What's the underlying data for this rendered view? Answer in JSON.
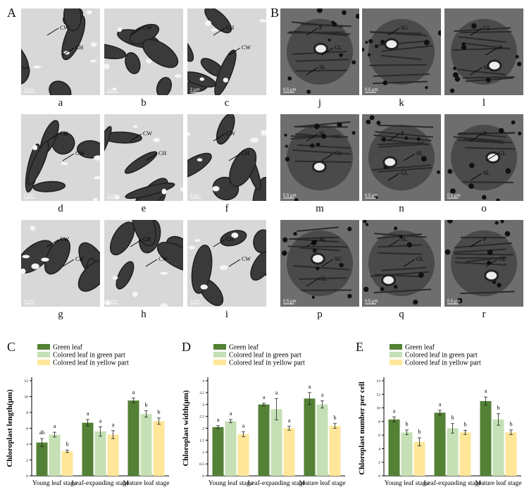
{
  "panels": {
    "a_title": "A",
    "b_title": "B",
    "c_title": "C",
    "d_title": "D",
    "e_title": "E"
  },
  "colors": {
    "green_leaf": "#538135",
    "colored_green_part": "#c5e0b4",
    "colored_yellow_part": "#ffe699"
  },
  "micrographs": [
    {
      "id": "a",
      "label": "a",
      "annotations": [
        "CW",
        "CH"
      ],
      "scale": "2 μm"
    },
    {
      "id": "b",
      "label": "b",
      "annotations": [
        "CW"
      ],
      "scale": "2 μm"
    },
    {
      "id": "c",
      "label": "c",
      "annotations": [
        "CH",
        "CW"
      ],
      "scale": "2 μm"
    },
    {
      "id": "d",
      "label": "d",
      "annotations": [
        "CH",
        "CW"
      ],
      "scale": "2 μm"
    },
    {
      "id": "e",
      "label": "e",
      "annotations": [
        "CW",
        "CH"
      ],
      "scale": "2 μm"
    },
    {
      "id": "f",
      "label": "f",
      "annotations": [
        "CW",
        "CH"
      ],
      "scale": "2 μm"
    },
    {
      "id": "g",
      "label": "g",
      "annotations": [
        "CW",
        "CH"
      ],
      "scale": "2 μm"
    },
    {
      "id": "h",
      "label": "h",
      "annotations": [
        "CH",
        "CW"
      ],
      "scale": "2 μm"
    },
    {
      "id": "i",
      "label": "i",
      "annotations": [
        "CH",
        "CW"
      ],
      "scale": "2 μm"
    },
    {
      "id": "j",
      "label": "j",
      "annotations": [
        "P",
        "GL",
        "SL"
      ],
      "scale": "0.5 μm"
    },
    {
      "id": "k",
      "label": "k",
      "annotations": [
        "SG"
      ],
      "scale": "0.5 μm"
    },
    {
      "id": "l",
      "label": "l",
      "annotations": [
        "GL",
        "P",
        "SL"
      ],
      "scale": ""
    },
    {
      "id": "m",
      "label": "m",
      "annotations": [
        "SL",
        "GL"
      ],
      "scale": "0.5 μm"
    },
    {
      "id": "n",
      "label": "n",
      "annotations": [
        "P",
        "SL",
        "GL"
      ],
      "scale": "0.5 μm"
    },
    {
      "id": "o",
      "label": "o",
      "annotations": [
        "P",
        "GL",
        "SL"
      ],
      "scale": "0.5 μm"
    },
    {
      "id": "p",
      "label": "p",
      "annotations": [
        "SL",
        "SG",
        "GL"
      ],
      "scale": "0.5 μm"
    },
    {
      "id": "q",
      "label": "q",
      "annotations": [
        "SL",
        "GL"
      ],
      "scale": "0.5 μm"
    },
    {
      "id": "r",
      "label": "r",
      "annotations": [
        "P",
        "GL"
      ],
      "scale": "0.5 μm"
    }
  ],
  "legend": [
    "Green leaf",
    "Colored leaf in green part",
    "Colored leaf in yellow part"
  ],
  "chart_data": [
    {
      "type": "bar",
      "ylabel": "Chloroplast length(μm)",
      "xlabel": "",
      "ylim": [
        0,
        12
      ],
      "yticks": [
        0,
        2,
        4,
        6,
        8,
        10,
        12
      ],
      "categories": [
        "Young leaf stage",
        "Leaf-expanding stage",
        "Mature leaf stage"
      ],
      "series": [
        {
          "name": "Green leaf",
          "values": [
            4.2,
            6.7,
            9.5
          ],
          "errors": [
            0.5,
            0.4,
            0.3
          ],
          "letters": [
            "ab",
            "a",
            "a"
          ]
        },
        {
          "name": "Colored leaf in green part",
          "values": [
            5.2,
            5.6,
            7.8
          ],
          "errors": [
            0.3,
            0.6,
            0.4
          ],
          "letters": [
            "a",
            "a",
            "b"
          ]
        },
        {
          "name": "Colored leaf in yellow part",
          "values": [
            3.1,
            5.2,
            6.9
          ],
          "errors": [
            0.15,
            0.5,
            0.4
          ],
          "letters": [
            "b",
            "a",
            "b"
          ]
        }
      ]
    },
    {
      "type": "bar",
      "ylabel": "Chloroplast width(μm)",
      "xlabel": "",
      "ylim": [
        0,
        4
      ],
      "yticks": [
        0,
        0.5,
        1,
        1.5,
        2,
        2.5,
        3,
        3.5,
        4
      ],
      "categories": [
        "Young leaf stage",
        "Leaf-expanding stage",
        "Mature leaf stage"
      ],
      "series": [
        {
          "name": "Green leaf",
          "values": [
            2.05,
            3.0,
            3.25
          ],
          "errors": [
            0.06,
            0.05,
            0.25
          ],
          "letters": [
            "a",
            "a",
            "a"
          ]
        },
        {
          "name": "Colored leaf in green part",
          "values": [
            2.3,
            2.8,
            3.0
          ],
          "errors": [
            0.07,
            0.45,
            0.15
          ],
          "letters": [
            "a",
            "a",
            "a"
          ]
        },
        {
          "name": "Colored leaf in yellow part",
          "values": [
            1.75,
            2.0,
            2.1
          ],
          "errors": [
            0.1,
            0.08,
            0.1
          ],
          "letters": [
            "a",
            "a",
            "b"
          ]
        }
      ]
    },
    {
      "type": "bar",
      "ylabel": "Chloroplast number per cell",
      "xlabel": "",
      "ylim": [
        0,
        14
      ],
      "yticks": [
        0,
        2,
        4,
        6,
        8,
        10,
        12,
        14
      ],
      "categories": [
        "Young leaf stage",
        "Leaf-expanding stage",
        "Mature leaf stage"
      ],
      "series": [
        {
          "name": "Green leaf",
          "values": [
            8.3,
            9.3,
            11.0
          ],
          "errors": [
            0.35,
            0.35,
            0.6
          ],
          "letters": [
            "a",
            "a",
            "a"
          ]
        },
        {
          "name": "Colored leaf in green part",
          "values": [
            6.4,
            7.0,
            8.3
          ],
          "errors": [
            0.35,
            0.7,
            0.85
          ],
          "letters": [
            "b",
            "b",
            "b"
          ]
        },
        {
          "name": "Colored leaf in yellow part",
          "values": [
            5.0,
            6.4,
            6.4
          ],
          "errors": [
            0.6,
            0.3,
            0.35
          ],
          "letters": [
            "b",
            "b",
            "b"
          ]
        }
      ]
    }
  ]
}
